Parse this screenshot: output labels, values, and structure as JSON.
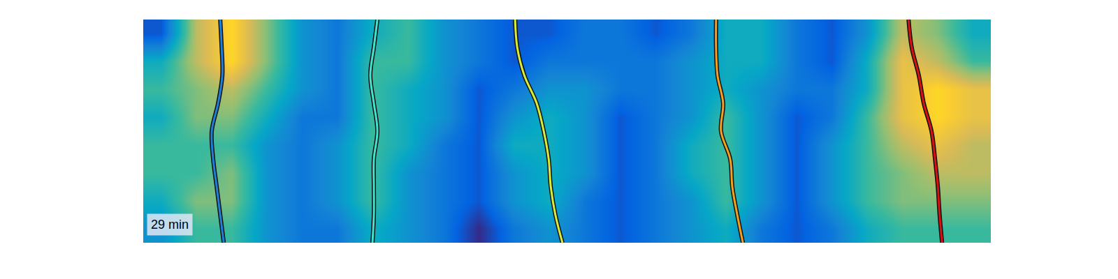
{
  "chart_data": {
    "type": "heatmap",
    "annotation": "29 min",
    "xlim": [
      0,
      24
    ],
    "ylim": [
      0,
      8
    ],
    "zlim": [
      0,
      10
    ],
    "tick_labels": false,
    "grid": false,
    "cells": [
      [
        3,
        5,
        5,
        3,
        2,
        2,
        4,
        3,
        2,
        0,
        2,
        3,
        2,
        1,
        2,
        3,
        4,
        2,
        1,
        2,
        4,
        5,
        5,
        5
      ],
      [
        4,
        6,
        6,
        3,
        2,
        3,
        5,
        3,
        2,
        1,
        3,
        4,
        2,
        1,
        2,
        3,
        5,
        3,
        1,
        3,
        5,
        6,
        6,
        6
      ],
      [
        5,
        5,
        6,
        3,
        2,
        3,
        5,
        3,
        2,
        1,
        3,
        4,
        3,
        1,
        2,
        4,
        5,
        3,
        1,
        3,
        5,
        6,
        7,
        7
      ],
      [
        5,
        5,
        5,
        3,
        2,
        3,
        5,
        4,
        2,
        1,
        4,
        4,
        3,
        1,
        2,
        4,
        5,
        3,
        1,
        3,
        5,
        7,
        8,
        7
      ],
      [
        4,
        6,
        6,
        4,
        2,
        2,
        5,
        4,
        3,
        1,
        3,
        4,
        3,
        1,
        2,
        3,
        5,
        3,
        1,
        2,
        5,
        8,
        9,
        8
      ],
      [
        5,
        6,
        7,
        5,
        3,
        2,
        5,
        4,
        3,
        1,
        2,
        3,
        3,
        2,
        2,
        3,
        4,
        3,
        2,
        2,
        4,
        8,
        9,
        8
      ],
      [
        4,
        7,
        9,
        6,
        3,
        2,
        5,
        5,
        3,
        2,
        1,
        2,
        2,
        2,
        2,
        3,
        4,
        4,
        2,
        1,
        4,
        8,
        7,
        5
      ],
      [
        1,
        7,
        9,
        6,
        3,
        2,
        4,
        5,
        3,
        2,
        1,
        1,
        2,
        2,
        1,
        2,
        4,
        4,
        2,
        1,
        3,
        7,
        6,
        4
      ]
    ],
    "series": [
      {
        "type": "line",
        "color": "#1f7fd6",
        "x": [
          2.18,
          2.22,
          2.24,
          2.12,
          1.94,
          1.98,
          2.08,
          2.18,
          2.28
        ],
        "y": [
          8,
          7,
          6,
          5,
          4,
          3,
          2,
          1,
          0
        ]
      },
      {
        "type": "line",
        "color": "#3fe3cf",
        "x": [
          6.63,
          6.53,
          6.43,
          6.53,
          6.63,
          6.53,
          6.53,
          6.53,
          6.49
        ],
        "y": [
          8,
          7,
          6,
          5,
          4,
          3,
          2,
          1,
          0
        ]
      },
      {
        "type": "line",
        "color": "#d8ec3a",
        "x": [
          10.53,
          10.59,
          10.79,
          11.14,
          11.34,
          11.48,
          11.54,
          11.67,
          11.87
        ],
        "y": [
          8,
          7,
          6,
          5,
          4,
          3,
          2,
          1,
          0
        ]
      },
      {
        "type": "line",
        "color": "#f2a01e",
        "x": [
          16.22,
          16.22,
          16.26,
          16.42,
          16.36,
          16.62,
          16.68,
          16.82,
          16.98
        ],
        "y": [
          8,
          7,
          6,
          5,
          4,
          3,
          2,
          1,
          0
        ]
      },
      {
        "type": "line",
        "color": "#d81212",
        "x": [
          21.67,
          21.76,
          21.96,
          22.1,
          22.32,
          22.42,
          22.5,
          22.55,
          22.62
        ],
        "y": [
          8,
          7,
          6,
          5,
          4,
          3,
          2,
          1,
          0
        ]
      }
    ]
  }
}
